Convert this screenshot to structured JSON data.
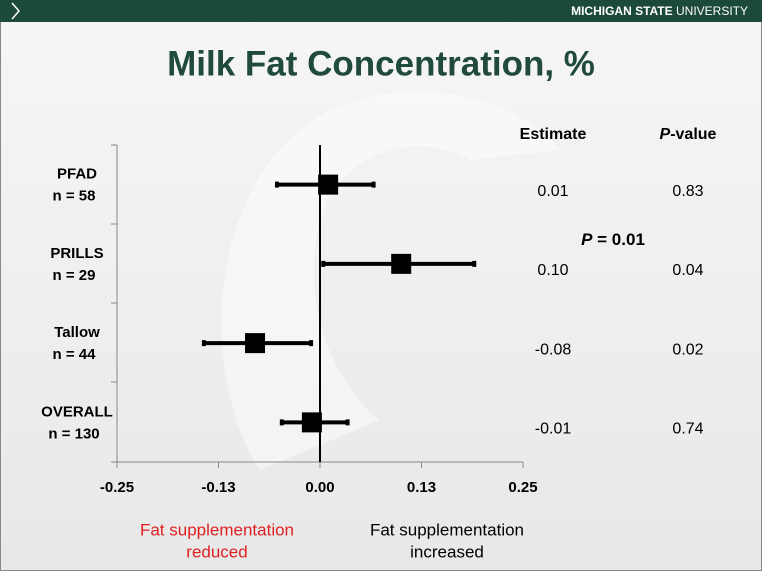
{
  "brand": [
    "MICHIGAN STATE",
    "UNIVERSITY"
  ],
  "chart_data": {
    "type": "forest",
    "title": "Milk Fat Concentration, %",
    "categories": [
      "PFAD",
      "PRILLS",
      "Tallow",
      "OVERALL"
    ],
    "n_labels": [
      "n = 58",
      "n = 29",
      "n = 44",
      "n = 130"
    ],
    "values": [
      0.01,
      0.1,
      -0.08,
      -0.01
    ],
    "value_labels": [
      "0.01",
      "0.10",
      "-0.08",
      "-0.01"
    ],
    "ci_low": [
      -0.053,
      0.004,
      -0.143,
      -0.047
    ],
    "ci_high": [
      0.066,
      0.19,
      -0.011,
      0.034
    ],
    "p_values": [
      0.83,
      0.04,
      0.02,
      0.74
    ],
    "estimate_header": "Estimate",
    "p_header": {
      "symbol": "P",
      "text": "-value"
    },
    "annotation": {
      "symbol": "P",
      "text": "= 0.01"
    },
    "color": "#000000",
    "xlim": [
      -0.25,
      0.25
    ],
    "xticks": [
      -0.25,
      {
        "value": -0.125,
        "label": "-0.13"
      },
      {
        "value": 0,
        "label": "0.00"
      },
      {
        "value": 0.125,
        "label": "0.13"
      },
      0.25
    ],
    "left_label": [
      "Fat supplementation",
      "reduced"
    ],
    "right_label": [
      "Fat supplementation",
      "increased"
    ]
  }
}
